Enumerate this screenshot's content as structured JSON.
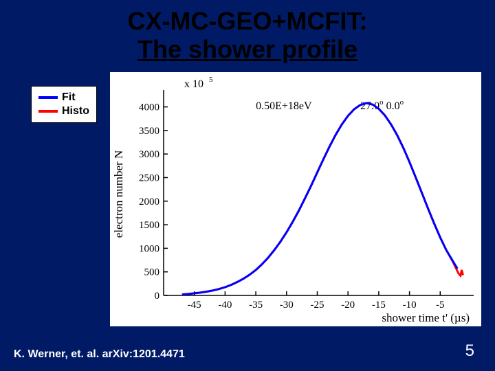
{
  "title": {
    "line1": "CX-MC-GEO+MCFIT:",
    "line2": "The shower profile",
    "color": "#000000",
    "fontsize": 36
  },
  "legend": {
    "items": [
      {
        "label": "Fit",
        "color": "#0000ff"
      },
      {
        "label": "Histo",
        "color": "#ff0000"
      }
    ],
    "fontsize": 16,
    "border_color": "#000000",
    "bg": "#ffffff"
  },
  "citation": {
    "text": "K. Werner, et. al. arXiv:1201.4471",
    "color": "#ffffff",
    "fontsize": 16
  },
  "page_number": {
    "text": "5",
    "color": "#ffffff",
    "fontsize": 24
  },
  "chart": {
    "type": "line",
    "bg": "#ffffff",
    "axis_color": "#000000",
    "tick_fontsize": 15,
    "label_fontsize": 17,
    "multiplier_label": "x 10",
    "multiplier_exp": "5",
    "annot_energy": "0.50E+18eV",
    "annot_angle_deg": "27.0",
    "annot_angle_min": "0.0",
    "xlabel": "shower time t' (µs)",
    "ylabel": "electron number N",
    "xlim": [
      -50,
      0
    ],
    "ylim": [
      0,
      4300
    ],
    "xticks": [
      -45,
      -40,
      -35,
      -30,
      -25,
      -20,
      -15,
      -10,
      -5
    ],
    "yticks": [
      0,
      500,
      1000,
      1500,
      2000,
      2500,
      3000,
      3500,
      4000
    ],
    "line_width": 3,
    "series": {
      "histo": {
        "color": "#ff0000",
        "x": [
          -47,
          -46,
          -45,
          -44,
          -43,
          -42,
          -41,
          -40,
          -39,
          -38,
          -37,
          -36,
          -35,
          -34,
          -33,
          -32,
          -31,
          -30,
          -29,
          -28,
          -27,
          -26,
          -25,
          -24,
          -23,
          -22,
          -21,
          -20,
          -19,
          -18,
          -17,
          -16,
          -15,
          -14,
          -13,
          -12,
          -11,
          -10,
          -9,
          -8,
          -7,
          -6,
          -5,
          -4,
          -3,
          -2
        ],
        "y": [
          20,
          30,
          45,
          60,
          80,
          105,
          135,
          175,
          225,
          285,
          355,
          440,
          540,
          660,
          800,
          960,
          1140,
          1340,
          1560,
          1800,
          2060,
          2330,
          2610,
          2890,
          3160,
          3410,
          3630,
          3810,
          3950,
          4040,
          4080,
          4050,
          3960,
          3820,
          3630,
          3400,
          3130,
          2830,
          2510,
          2180,
          1850,
          1530,
          1230,
          960,
          730,
          460
        ],
        "y_tail": [
          420,
          540,
          430
        ]
      },
      "fit": {
        "color": "#0000ff",
        "x": [
          -47,
          -46,
          -45,
          -44,
          -43,
          -42,
          -41,
          -40,
          -39,
          -38,
          -37,
          -36,
          -35,
          -34,
          -33,
          -32,
          -31,
          -30,
          -29,
          -28,
          -27,
          -26,
          -25,
          -24,
          -23,
          -22,
          -21,
          -20,
          -19,
          -18,
          -17,
          -16,
          -15,
          -14,
          -13,
          -12,
          -11,
          -10,
          -9,
          -8,
          -7,
          -6,
          -5,
          -4,
          -3,
          -2.2
        ],
        "y": [
          20,
          30,
          45,
          60,
          80,
          105,
          135,
          175,
          225,
          285,
          355,
          440,
          540,
          660,
          800,
          960,
          1140,
          1340,
          1560,
          1800,
          2060,
          2330,
          2610,
          2890,
          3160,
          3410,
          3630,
          3810,
          3950,
          4040,
          4080,
          4050,
          3960,
          3820,
          3630,
          3400,
          3130,
          2830,
          2510,
          2180,
          1850,
          1530,
          1230,
          960,
          740,
          570
        ]
      }
    }
  },
  "slide_bg": "#001a66"
}
